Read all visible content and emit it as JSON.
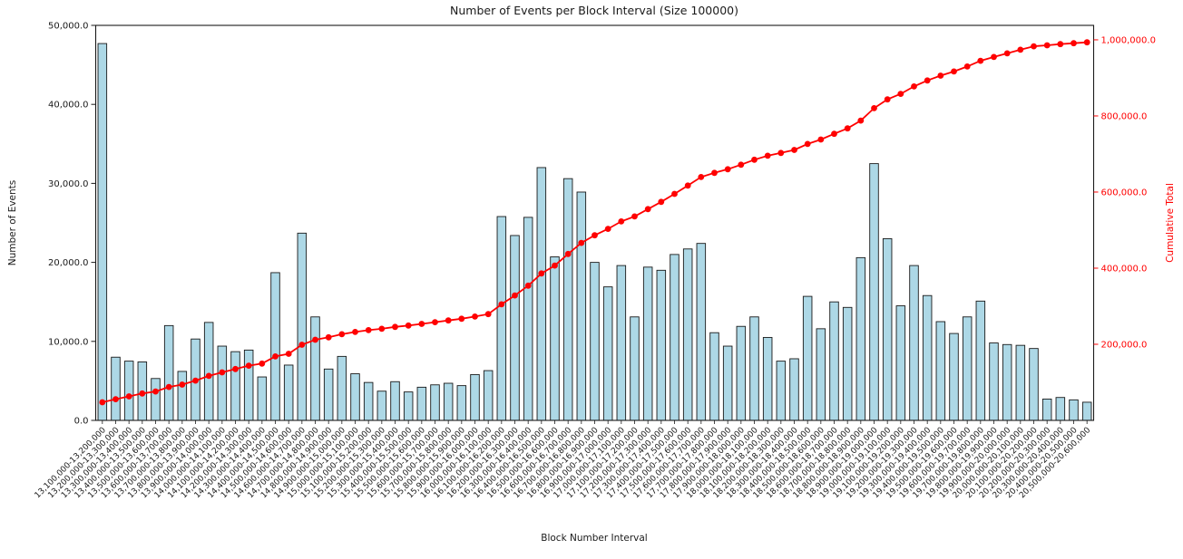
{
  "chart_data": {
    "type": "bar",
    "title": "Number of Events per Block Interval (Size 100000)",
    "xlabel": "Block Number Interval",
    "ylabel": "Number of Events",
    "y2label": "Cumulative Total",
    "grid": false,
    "legend": "none",
    "categories": [
      "13,100,000-13,200,000",
      "13,200,000-13,300,000",
      "13,300,000-13,400,000",
      "13,400,000-13,500,000",
      "13,500,000-13,600,000",
      "13,600,000-13,700,000",
      "13,700,000-13,800,000",
      "13,800,000-13,900,000",
      "13,900,000-14,000,000",
      "14,000,000-14,100,000",
      "14,100,000-14,200,000",
      "14,200,000-14,300,000",
      "14,300,000-14,400,000",
      "14,400,000-14,500,000",
      "14,500,000-14,600,000",
      "14,600,000-14,700,000",
      "14,700,000-14,800,000",
      "14,800,000-14,900,000",
      "14,900,000-15,000,000",
      "15,000,000-15,100,000",
      "15,100,000-15,200,000",
      "15,200,000-15,300,000",
      "15,300,000-15,400,000",
      "15,400,000-15,500,000",
      "15,500,000-15,600,000",
      "15,600,000-15,700,000",
      "15,700,000-15,800,000",
      "15,800,000-15,900,000",
      "15,900,000-16,000,000",
      "16,000,000-16,100,000",
      "16,100,000-16,200,000",
      "16,200,000-16,300,000",
      "16,300,000-16,400,000",
      "16,400,000-16,500,000",
      "16,500,000-16,600,000",
      "16,600,000-16,700,000",
      "16,700,000-16,800,000",
      "16,800,000-16,900,000",
      "16,900,000-17,000,000",
      "17,000,000-17,100,000",
      "17,100,000-17,200,000",
      "17,200,000-17,300,000",
      "17,300,000-17,400,000",
      "17,400,000-17,500,000",
      "17,500,000-17,600,000",
      "17,600,000-17,700,000",
      "17,700,000-17,800,000",
      "17,800,000-17,900,000",
      "17,900,000-18,000,000",
      "18,000,000-18,100,000",
      "18,100,000-18,200,000",
      "18,200,000-18,300,000",
      "18,300,000-18,400,000",
      "18,400,000-18,500,000",
      "18,500,000-18,600,000",
      "18,600,000-18,700,000",
      "18,700,000-18,800,000",
      "18,800,000-18,900,000",
      "18,900,000-19,000,000",
      "19,000,000-19,100,000",
      "19,100,000-19,200,000",
      "19,200,000-19,300,000",
      "19,300,000-19,400,000",
      "19,400,000-19,500,000",
      "19,500,000-19,600,000",
      "19,600,000-19,700,000",
      "19,700,000-19,800,000",
      "19,800,000-19,900,000",
      "19,900,000-20,000,000",
      "20,000,000-20,100,000",
      "20,100,000-20,200,000",
      "20,200,000-20,300,000",
      "20,300,000-20,400,000",
      "20,400,000-20,500,000",
      "20,500,000-20,600,000"
    ],
    "series": [
      {
        "name": "Number of Events",
        "type": "bar",
        "axis": "left",
        "fill_color": "#add8e6",
        "edge_color": "#1a1a1a",
        "values": [
          47700,
          8000,
          7500,
          7400,
          5300,
          12000,
          6200,
          10300,
          12400,
          9400,
          8700,
          8900,
          5500,
          18700,
          7000,
          23700,
          13100,
          6500,
          8100,
          5900,
          4800,
          3700,
          4900,
          3600,
          4200,
          4500,
          4700,
          4400,
          5800,
          6300,
          25800,
          23400,
          25700,
          32000,
          20700,
          30600,
          28900,
          20000,
          16900,
          19600,
          13100,
          19400,
          19000,
          21000,
          21700,
          22400,
          11100,
          9400,
          11900,
          13100,
          10500,
          7500,
          7800,
          15700,
          11600,
          15000,
          14300,
          20600,
          32500,
          23000,
          14500,
          19600,
          15800,
          12500,
          11000,
          13100,
          15100,
          9800,
          9600,
          9500,
          9100,
          2700,
          2900,
          2600,
          2300
        ]
      },
      {
        "name": "Cumulative Total",
        "type": "line",
        "axis": "right",
        "color": "#ff0000",
        "marker": "circle",
        "derived": "running_sum_of_bar_values",
        "final_value": 993500
      }
    ],
    "left_axis": {
      "max": 50000,
      "tick_values": [
        0,
        10000,
        20000,
        30000,
        40000,
        50000
      ],
      "tick_labels": [
        "0.0",
        "10,000.0",
        "20,000.0",
        "30,000.0",
        "40,000.0",
        "50,000.0"
      ]
    },
    "right_axis": {
      "scale_max": 1038000,
      "tick_values": [
        200000,
        400000,
        600000,
        800000,
        1000000
      ],
      "tick_labels": [
        "200,000.0",
        "400,000.0",
        "600,000.0",
        "800,000.0",
        "1,000,000.0"
      ],
      "color": "#ff0000"
    }
  },
  "colors": {
    "background": "#ffffff",
    "bar_fill": "#add8e6",
    "bar_edge": "#1a1a1a",
    "cumulative_line": "#ff0000",
    "axis_frame": "#1a1a1a",
    "right_axis_text": "#ff0000"
  }
}
